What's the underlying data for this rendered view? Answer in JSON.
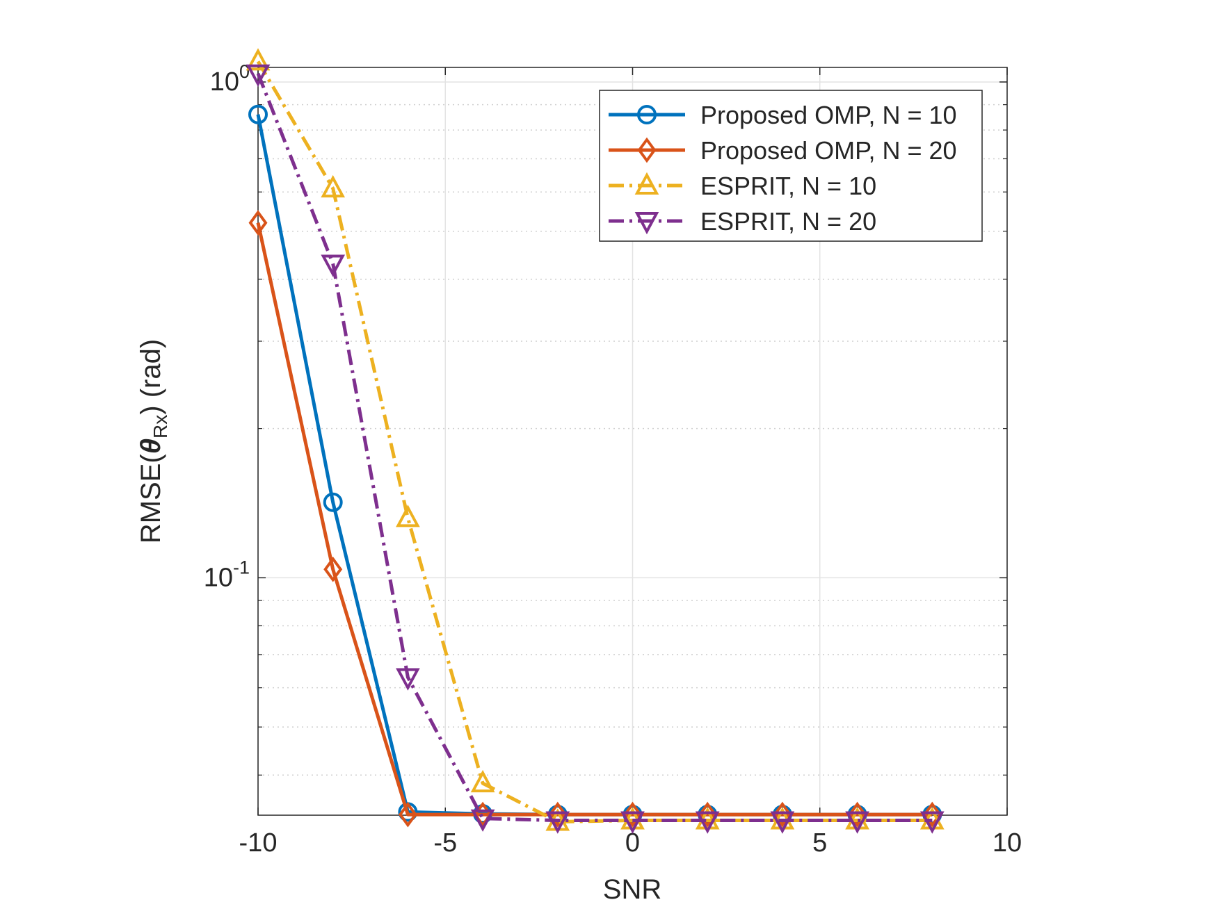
{
  "chart_data": {
    "type": "line",
    "title": "",
    "xlabel": "SNR",
    "ylabel_parts": {
      "prefix": "RMSE(",
      "symbol": "θ",
      "subscript": "Rx",
      "suffix": ") (rad)"
    },
    "xlim": [
      -10,
      10
    ],
    "ylim": [
      0.0332,
      1.07
    ],
    "yscale": "log",
    "grid": true,
    "x_ticks": [
      {
        "value": -10,
        "label": "-10"
      },
      {
        "value": -5,
        "label": "-5"
      },
      {
        "value": 0,
        "label": "0"
      },
      {
        "value": 5,
        "label": "5"
      },
      {
        "value": 10,
        "label": "10"
      }
    ],
    "y_ticks": [
      {
        "value": 0.1,
        "base": "10",
        "exp": "-1"
      },
      {
        "value": 1,
        "base": "10",
        "exp": "0"
      }
    ],
    "x": [
      -10,
      -8,
      -6,
      -4,
      -2,
      0,
      2,
      4,
      6,
      8
    ],
    "series": [
      {
        "name": "Proposed OMP, N = 10",
        "color": "#0072BD",
        "dash": "solid",
        "marker": "circle",
        "values": [
          0.86,
          0.142,
          0.0337,
          0.0334,
          0.0333,
          0.0333,
          0.0333,
          0.0333,
          0.0333,
          0.0333
        ]
      },
      {
        "name": "Proposed OMP, N = 20",
        "color": "#D95319",
        "dash": "solid",
        "marker": "diamond",
        "values": [
          0.52,
          0.104,
          0.0333,
          0.0333,
          0.0333,
          0.0333,
          0.0333,
          0.0333,
          0.0333,
          0.0333
        ]
      },
      {
        "name": "ESPRIT, N = 10",
        "color": "#EDB120",
        "dash": "dashdot",
        "marker": "triangle-up",
        "values": [
          1.1,
          0.61,
          0.132,
          0.0385,
          0.0322,
          0.0324,
          0.0324,
          0.0324,
          0.0324,
          0.0324
        ]
      },
      {
        "name": "ESPRIT, N = 20",
        "color": "#7E2F8E",
        "dash": "dashdot",
        "marker": "triangle-down",
        "values": [
          1.04,
          0.43,
          0.063,
          0.0327,
          0.0324,
          0.0324,
          0.0324,
          0.0324,
          0.0324,
          0.0324
        ]
      }
    ],
    "legend_position": "top-right"
  }
}
